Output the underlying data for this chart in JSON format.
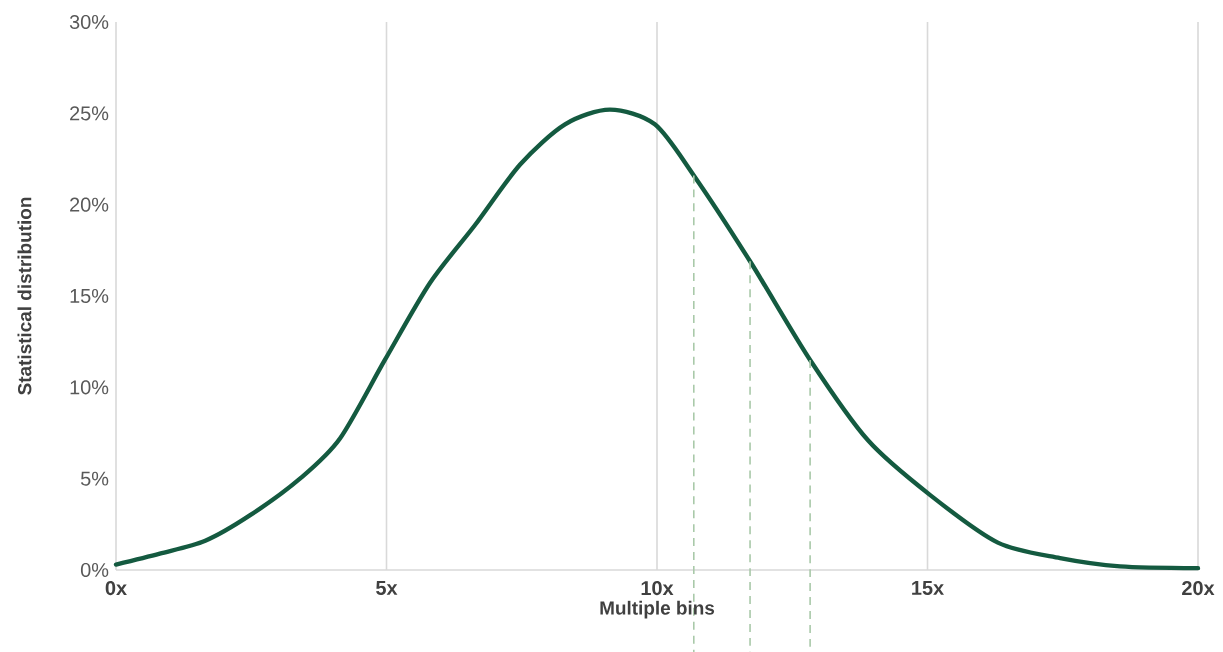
{
  "chart_data": {
    "type": "line",
    "xlabel": "Multiple bins",
    "ylabel": "Statistical distribution",
    "x": [
      0,
      0.81,
      1.65,
      2.48,
      3.4,
      4.14,
      4.97,
      5.8,
      6.64,
      7.47,
      8.3,
      9.13,
      9.96,
      10.68,
      11.72,
      12.83,
      13.9,
      15.05,
      16.3,
      17.45,
      18.56,
      20
    ],
    "series": [
      {
        "color": "#145a40",
        "values": [
          0.3,
          0.9,
          1.6,
          3.0,
          5.0,
          7.2,
          11.5,
          15.7,
          18.9,
          22.2,
          24.4,
          25.2,
          24.4,
          21.6,
          16.9,
          11.5,
          7.1,
          4.1,
          1.5,
          0.65,
          0.2,
          0.1
        ]
      }
    ],
    "xlim": [
      0,
      20
    ],
    "ylim": [
      0,
      30
    ],
    "xticks": [
      {
        "value": 0,
        "label": "0x"
      },
      {
        "value": 5,
        "label": "5x"
      },
      {
        "value": 10,
        "label": "10x"
      },
      {
        "value": 15,
        "label": "15x"
      },
      {
        "value": 20,
        "label": "20x"
      }
    ],
    "yticks": [
      {
        "value": 0,
        "label": "0%"
      },
      {
        "value": 5,
        "label": "5%"
      },
      {
        "value": 10,
        "label": "10%"
      },
      {
        "value": 15,
        "label": "15%"
      },
      {
        "value": 20,
        "label": "20%"
      },
      {
        "value": 25,
        "label": "25%"
      },
      {
        "value": 30,
        "label": "30%"
      }
    ],
    "grid": "x",
    "marker": "none",
    "line_style": "solid",
    "ref_lines": [
      {
        "axis": "x",
        "value": 10.68,
        "color": "#a9c9a9",
        "line_style": "dashed"
      },
      {
        "axis": "x",
        "value": 11.72,
        "color": "#a9c9a9",
        "line_style": "dashed"
      },
      {
        "axis": "x",
        "value": 12.83,
        "color": "#a9c9a9",
        "line_style": "dashed"
      }
    ]
  }
}
